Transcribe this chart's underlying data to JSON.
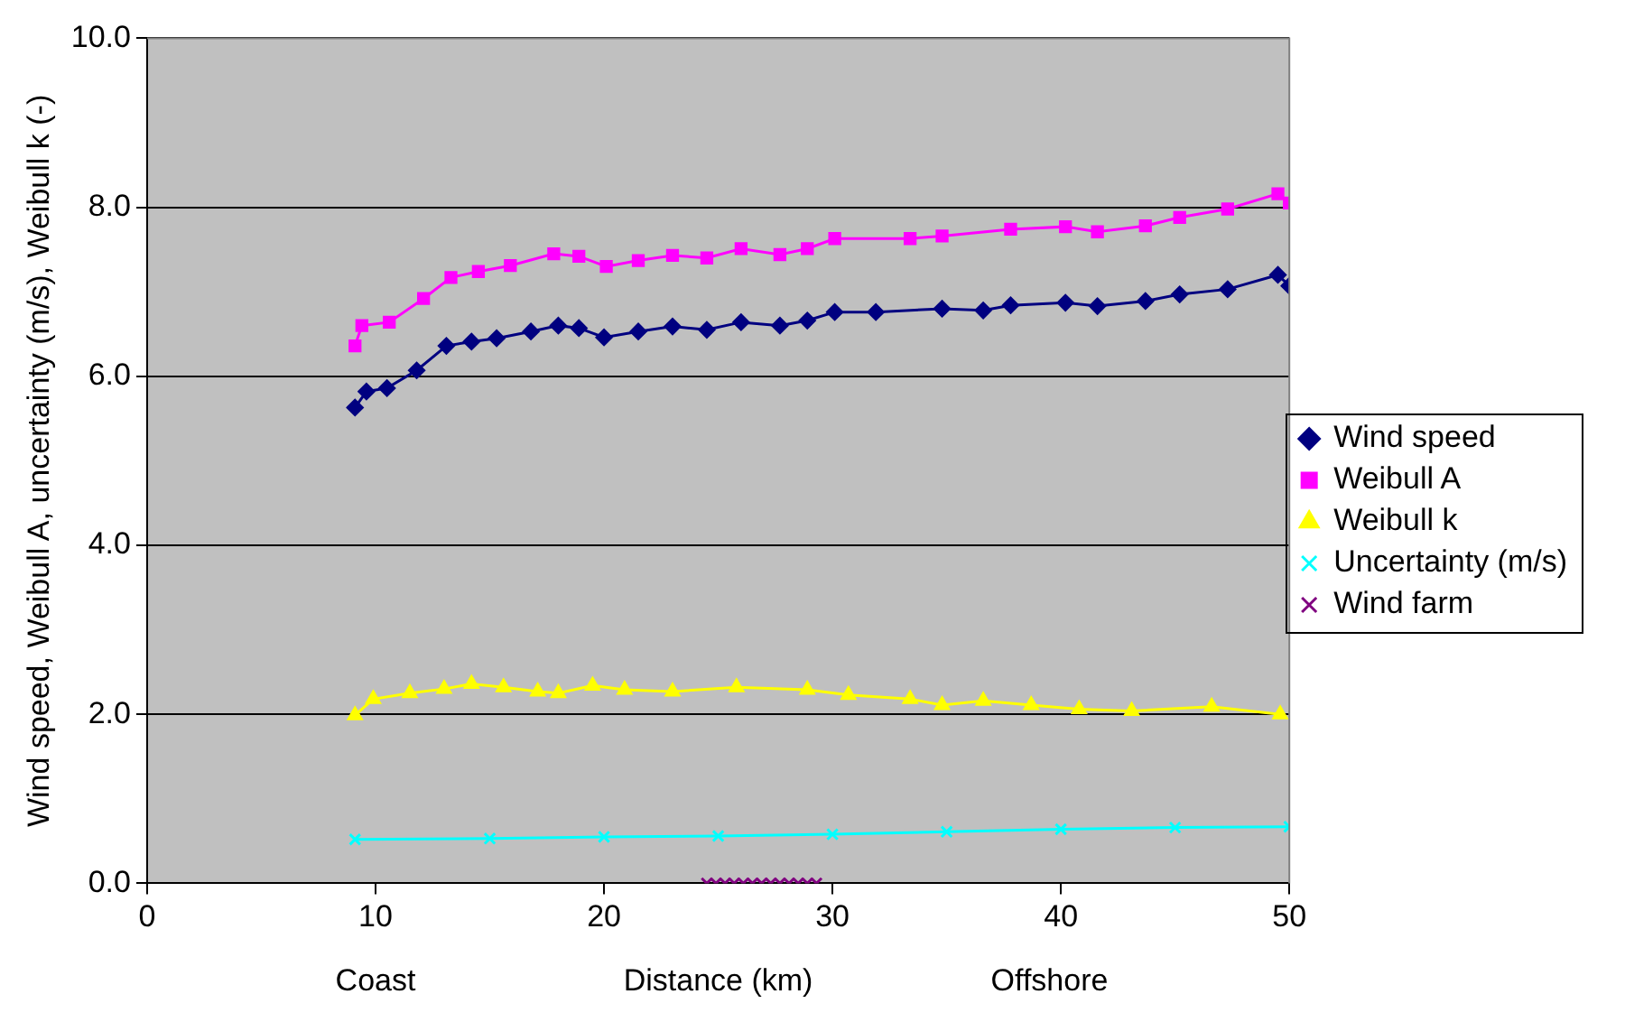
{
  "chart_data": {
    "type": "line",
    "xlabel": "Distance (km)",
    "ylabel": "Wind speed, Weibull A, uncertainty (m/s), Weibull k (-)",
    "annotations": [
      "Coast",
      "Offshore"
    ],
    "xlim": [
      0,
      50
    ],
    "xticks": [
      0,
      10,
      20,
      30,
      40,
      50
    ],
    "ylim": [
      0,
      10
    ],
    "yticks": [
      {
        "value": 0,
        "label": "0.0"
      },
      {
        "value": 2,
        "label": "2.0"
      },
      {
        "value": 4,
        "label": "4.0"
      },
      {
        "value": 6,
        "label": "6.0"
      },
      {
        "value": 8,
        "label": "8.0"
      },
      {
        "value": 10,
        "label": "10.0"
      }
    ],
    "grid": "y",
    "legend": "right",
    "series": [
      {
        "name": "Wind speed",
        "color": "#000080",
        "marker": "diamond",
        "x": [
          9.1,
          9.6,
          10.5,
          11.8,
          13.1,
          14.2,
          15.3,
          16.8,
          18.0,
          18.9,
          20.0,
          21.5,
          23.0,
          24.5,
          26.0,
          27.7,
          28.9,
          30.1,
          31.9,
          34.8,
          36.6,
          37.8,
          40.2,
          41.6,
          43.7,
          45.2,
          47.3,
          49.5,
          50
        ],
        "values": [
          5.63,
          5.82,
          5.86,
          6.07,
          6.36,
          6.41,
          6.45,
          6.53,
          6.6,
          6.57,
          6.46,
          6.53,
          6.59,
          6.55,
          6.64,
          6.6,
          6.66,
          6.76,
          6.76,
          6.8,
          6.78,
          6.84,
          6.87,
          6.83,
          6.89,
          6.97,
          7.03,
          7.2,
          7.07
        ]
      },
      {
        "name": "Weibull A",
        "color": "#ff00ff",
        "marker": "square",
        "x": [
          9.1,
          9.4,
          10.6,
          12.1,
          13.3,
          14.5,
          15.9,
          17.8,
          18.9,
          20.1,
          21.5,
          23.0,
          24.5,
          26.0,
          27.7,
          28.9,
          30.1,
          33.4,
          34.8,
          37.8,
          40.2,
          41.6,
          43.7,
          45.2,
          47.3,
          49.5,
          50
        ],
        "values": [
          6.36,
          6.6,
          6.64,
          6.92,
          7.17,
          7.24,
          7.31,
          7.45,
          7.42,
          7.3,
          7.37,
          7.43,
          7.4,
          7.51,
          7.44,
          7.51,
          7.63,
          7.63,
          7.66,
          7.74,
          7.77,
          7.71,
          7.78,
          7.88,
          7.98,
          8.16,
          8.05
        ]
      },
      {
        "name": "Weibull k",
        "color": "#ffff00",
        "marker": "triangle",
        "x": [
          9.1,
          9.9,
          11.5,
          13.0,
          14.2,
          15.6,
          17.1,
          18.0,
          19.5,
          20.9,
          23.0,
          25.8,
          28.9,
          30.7,
          33.4,
          34.8,
          36.6,
          38.7,
          40.8,
          43.1,
          46.6,
          49.6
        ],
        "values": [
          1.99,
          2.18,
          2.25,
          2.3,
          2.36,
          2.32,
          2.27,
          2.25,
          2.34,
          2.29,
          2.27,
          2.32,
          2.29,
          2.23,
          2.18,
          2.11,
          2.16,
          2.11,
          2.06,
          2.04,
          2.09,
          2.0
        ]
      },
      {
        "name": "Uncertainty (m/s)",
        "color": "#00ffff",
        "marker": "cross",
        "x": [
          9.1,
          15,
          20,
          25,
          30,
          35,
          40,
          45,
          50
        ],
        "values": [
          0.52,
          0.53,
          0.55,
          0.56,
          0.58,
          0.61,
          0.64,
          0.66,
          0.67
        ]
      },
      {
        "name": "Wind farm",
        "color": "#800080",
        "marker": "cross",
        "type": "scatter",
        "x": [
          24.5,
          24.9,
          25.3,
          25.7,
          26.1,
          26.5,
          26.9,
          27.3,
          27.7,
          28.1,
          28.5,
          28.9,
          29.3
        ],
        "values": [
          0,
          0,
          0,
          0,
          0,
          0,
          0,
          0,
          0,
          0,
          0,
          0,
          0
        ]
      }
    ]
  }
}
